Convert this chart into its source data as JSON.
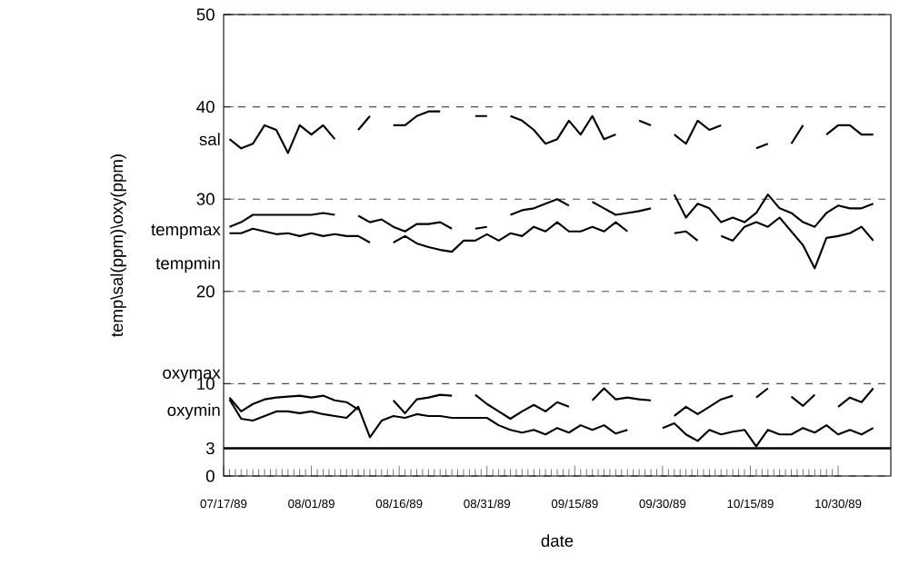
{
  "chart_data": {
    "type": "line",
    "xlabel": "date",
    "ylabel": "temp\\sal(ppm)\\oxy(ppm)",
    "xlim": [
      "1989-07-17",
      "1989-11-08"
    ],
    "ylim": [
      0,
      50
    ],
    "xticks": [
      {
        "value": "1989-07-17",
        "label": "07/17/89"
      },
      {
        "value": "1989-08-01",
        "label": "08/01/89"
      },
      {
        "value": "1989-08-16",
        "label": "08/16/89"
      },
      {
        "value": "1989-08-31",
        "label": "08/31/89"
      },
      {
        "value": "1989-09-15",
        "label": "09/15/89"
      },
      {
        "value": "1989-09-30",
        "label": "09/30/89"
      },
      {
        "value": "1989-10-15",
        "label": "10/15/89"
      },
      {
        "value": "1989-10-30",
        "label": "10/30/89"
      }
    ],
    "yticks": [
      0,
      3,
      10,
      20,
      30,
      40,
      50
    ],
    "grid": "y",
    "legend": "left",
    "marker": "none",
    "line_style": "solid",
    "ref_lines": [
      {
        "axis": "y",
        "value": 3,
        "label": null,
        "color": "#000000"
      }
    ],
    "x": [
      "1989-07-18",
      "1989-07-20",
      "1989-07-22",
      "1989-07-24",
      "1989-07-26",
      "1989-07-28",
      "1989-07-30",
      "1989-08-01",
      "1989-08-03",
      "1989-08-05",
      "1989-08-07",
      "1989-08-09",
      "1989-08-11",
      "1989-08-13",
      "1989-08-15",
      "1989-08-17",
      "1989-08-19",
      "1989-08-21",
      "1989-08-23",
      "1989-08-25",
      "1989-08-27",
      "1989-08-29",
      "1989-08-31",
      "1989-09-02",
      "1989-09-04",
      "1989-09-06",
      "1989-09-08",
      "1989-09-10",
      "1989-09-12",
      "1989-09-14",
      "1989-09-16",
      "1989-09-18",
      "1989-09-20",
      "1989-09-22",
      "1989-09-24",
      "1989-09-26",
      "1989-09-28",
      "1989-09-30",
      "1989-10-02",
      "1989-10-04",
      "1989-10-06",
      "1989-10-08",
      "1989-10-10",
      "1989-10-12",
      "1989-10-14",
      "1989-10-16",
      "1989-10-18",
      "1989-10-20",
      "1989-10-22",
      "1989-10-24",
      "1989-10-26",
      "1989-10-28",
      "1989-10-30",
      "1989-11-01",
      "1989-11-03",
      "1989-11-05"
    ],
    "series": [
      {
        "name": "sal",
        "color": "#000000",
        "values": [
          36.5,
          35.5,
          36,
          38,
          37.5,
          35,
          38,
          37,
          38,
          36.5,
          null,
          37.5,
          39,
          null,
          38,
          38,
          39,
          39.5,
          39.5,
          null,
          null,
          39,
          39,
          null,
          39,
          38.5,
          37.5,
          36,
          36.5,
          38.5,
          37,
          39,
          36.5,
          37,
          null,
          38.5,
          38,
          null,
          37,
          36,
          38.5,
          37.5,
          38,
          null,
          null,
          35.5,
          36,
          null,
          36,
          38,
          null,
          37,
          38,
          38,
          37,
          37
        ]
      },
      {
        "name": "tempmax",
        "color": "#000000",
        "values": [
          27,
          27.5,
          28.3,
          28.3,
          28.3,
          28.3,
          28.3,
          28.3,
          28.5,
          28.3,
          null,
          28.2,
          27.5,
          27.8,
          27,
          26.5,
          27.3,
          27.3,
          27.5,
          26.8,
          null,
          26.8,
          27,
          null,
          28.3,
          28.8,
          29,
          29.5,
          30,
          29.3,
          null,
          29.7,
          29,
          28.3,
          28.5,
          28.7,
          29,
          null,
          30.5,
          28,
          29.5,
          29,
          27.5,
          28,
          27.5,
          28.5,
          30.5,
          29,
          28.5,
          27.5,
          27,
          28.5,
          29.3,
          29,
          29,
          29.5
        ]
      },
      {
        "name": "tempmin",
        "color": "#000000",
        "values": [
          26.3,
          26.3,
          26.8,
          26.5,
          26.2,
          26.3,
          26,
          26.3,
          26,
          26.2,
          26,
          26,
          25.3,
          null,
          25.3,
          26,
          25.2,
          24.8,
          24.5,
          24.3,
          25.5,
          25.5,
          26.2,
          25.5,
          26.3,
          26,
          27,
          26.5,
          27.5,
          26.5,
          26.5,
          27,
          26.5,
          27.5,
          26.5,
          null,
          null,
          null,
          26.3,
          26.5,
          25.5,
          null,
          26,
          25.5,
          27,
          27.5,
          27,
          28,
          26.5,
          25,
          22.5,
          25.8,
          26,
          26.3,
          27,
          25.5
        ]
      },
      {
        "name": "oxymax",
        "color": "#000000",
        "values": [
          8.5,
          7,
          7.8,
          8.3,
          8.5,
          8.6,
          8.7,
          8.5,
          8.7,
          8.2,
          8,
          7.2,
          null,
          null,
          8.2,
          6.8,
          8.3,
          8.5,
          8.8,
          8.7,
          null,
          8.8,
          7.8,
          7,
          6.2,
          7,
          7.7,
          7,
          8,
          7.5,
          null,
          8.2,
          9.5,
          8.3,
          8.5,
          8.3,
          8.2,
          null,
          6.5,
          7.5,
          6.7,
          7.5,
          8.3,
          8.7,
          null,
          8.5,
          9.5,
          null,
          8.6,
          7.6,
          8.8,
          null,
          7.5,
          8.5,
          8,
          9.5
        ]
      },
      {
        "name": "oxymin",
        "color": "#000000",
        "values": [
          8.3,
          6.2,
          6,
          6.5,
          7,
          7,
          6.8,
          7,
          6.7,
          6.5,
          6.3,
          7.5,
          4.2,
          6,
          6.5,
          6.3,
          6.7,
          6.5,
          6.5,
          6.3,
          6.3,
          6.3,
          6.3,
          5.5,
          5,
          4.7,
          5,
          4.5,
          5.2,
          4.7,
          5.5,
          5,
          5.5,
          4.6,
          5,
          null,
          null,
          5.2,
          5.7,
          4.5,
          3.8,
          5,
          4.5,
          4.8,
          5,
          3.2,
          5,
          4.5,
          4.5,
          5.2,
          4.7,
          5.5,
          4.5,
          5,
          4.5,
          5.2
        ]
      }
    ]
  }
}
